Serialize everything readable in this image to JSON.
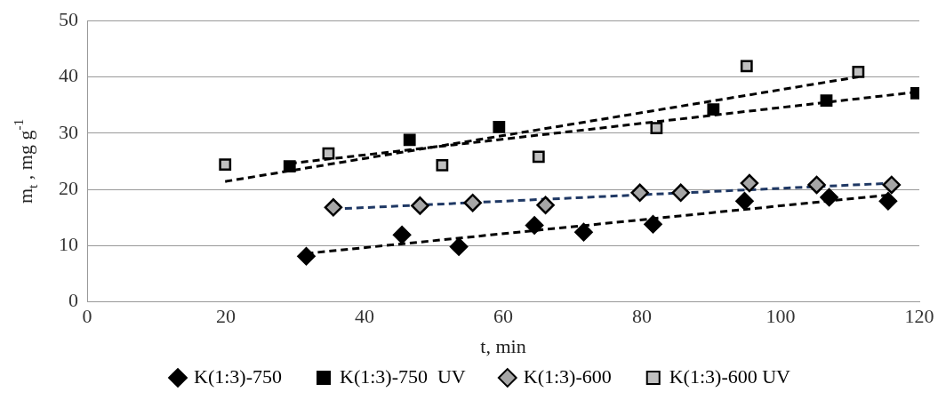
{
  "chart_data": {
    "type": "scatter",
    "xlabel": "t, min",
    "ylabel": "m$_{t}$ , mg g$^{-1}$",
    "xlim": [
      0,
      120
    ],
    "xticks": [
      0,
      20,
      40,
      60,
      80,
      100,
      120
    ],
    "ylim": [
      0,
      50
    ],
    "yticks": [
      0,
      10,
      20,
      30,
      40,
      50
    ],
    "grid": "y",
    "legend": "bottom",
    "series": [
      {
        "name": "K(1:3)-750",
        "color": "#000000",
        "marker": "diamond",
        "x": [
          31.6,
          45.4,
          53.6,
          64.5,
          71.6,
          81.6,
          94.8,
          107.0,
          115.5
        ],
        "values": [
          8.1,
          11.9,
          9.8,
          13.6,
          12.4,
          13.8,
          17.9,
          18.6,
          17.9
        ]
      },
      {
        "name": "K(1:3)-750  UV",
        "color": "#000000",
        "marker": "square",
        "x": [
          29.2,
          46.5,
          59.4,
          90.3,
          106.6,
          119.6
        ],
        "values": [
          24.1,
          28.8,
          31.1,
          34.2,
          35.8,
          37.1
        ]
      },
      {
        "name": "K(1:3)-600",
        "color": "#a6a6a6",
        "marker": "diamond",
        "x": [
          35.5,
          48.0,
          55.6,
          66.1,
          79.7,
          85.6,
          95.5,
          105.2,
          116.0
        ],
        "values": [
          16.8,
          17.1,
          17.6,
          17.2,
          19.4,
          19.4,
          21.1,
          20.8,
          20.8
        ]
      },
      {
        "name": "K(1:3)-600 UV",
        "color": "#c0c0c0",
        "marker": "square",
        "x": [
          19.9,
          34.8,
          51.2,
          65.1,
          82.1,
          95.1,
          111.2
        ],
        "values": [
          24.4,
          26.4,
          24.3,
          25.8,
          30.9,
          41.9,
          40.9
        ]
      },
      {
        "type": "line",
        "color": "#000000",
        "line_style": "dashed",
        "marker": "none",
        "x": [
          31.6,
          115.5
        ],
        "values": [
          8.6,
          19.0
        ]
      },
      {
        "type": "line",
        "color": "#000000",
        "line_style": "dashed",
        "marker": "none",
        "x": [
          29.2,
          119.6
        ],
        "values": [
          24.6,
          37.3
        ]
      },
      {
        "type": "line",
        "color": "#1f3864",
        "line_style": "dashed",
        "marker": "none",
        "x": [
          35.5,
          116.0
        ],
        "values": [
          16.5,
          21.1
        ]
      },
      {
        "type": "line",
        "color": "#000000",
        "line_style": "dashed",
        "marker": "none",
        "x": [
          19.9,
          111.2
        ],
        "values": [
          21.4,
          40.0
        ]
      }
    ]
  }
}
